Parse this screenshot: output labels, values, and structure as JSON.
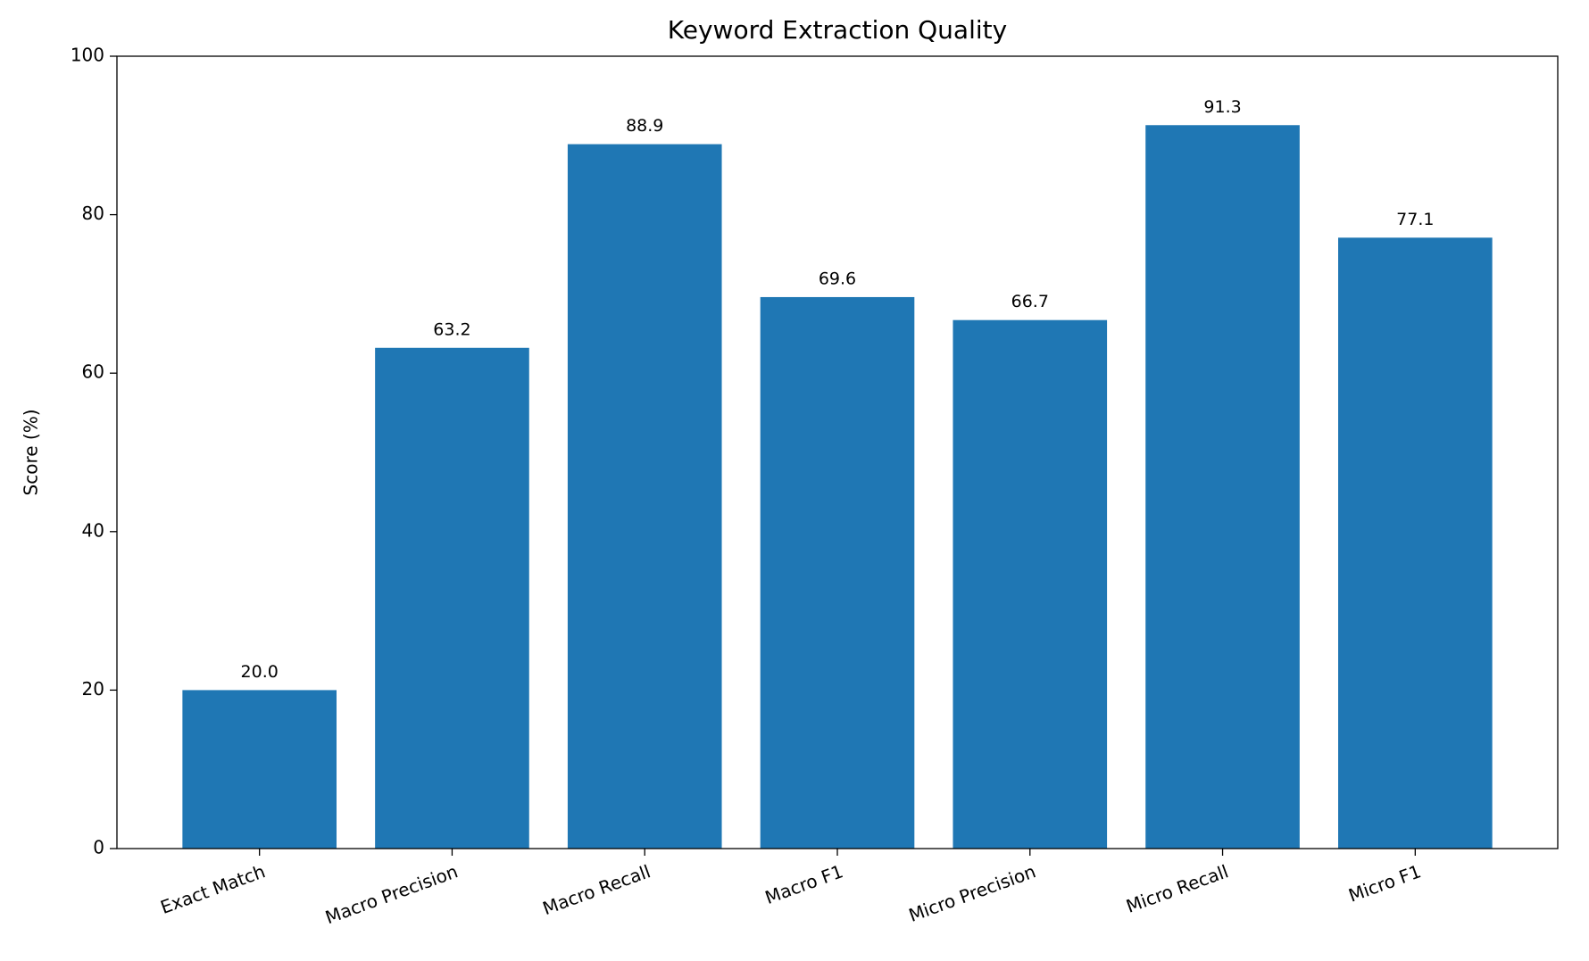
{
  "chart_data": {
    "type": "bar",
    "title": "Keyword Extraction Quality",
    "y_label": "Score (%)",
    "categories": [
      "Exact Match",
      "Macro Precision",
      "Macro Recall",
      "Macro F1",
      "Micro Precision",
      "Micro Recall",
      "Micro F1"
    ],
    "values": [
      20,
      63.2,
      88.9,
      69.6,
      66.7,
      91.3,
      77.1
    ],
    "value_labels": [
      "20.0",
      "63.2",
      "88.9",
      "69.6",
      "66.7",
      "91.3",
      "77.1"
    ],
    "color": "#1f77b4",
    "ylim": [
      0,
      100
    ],
    "yticks": [
      0,
      20,
      40,
      60,
      80,
      100
    ],
    "grid": false
  }
}
